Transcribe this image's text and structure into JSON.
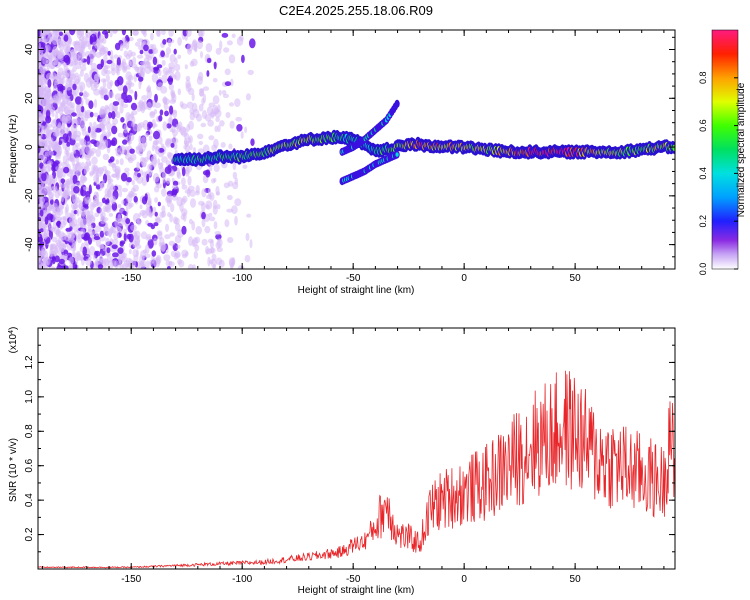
{
  "title": "C2E4.2025.255.18.06.R09",
  "colors": {
    "snr_line": "#e8262a",
    "scatter_light": "#d6b8f5",
    "scatter_dark": "#6a17e8"
  },
  "chart_data": [
    {
      "type": "heatmap",
      "xlabel": "Height of straight line (km)",
      "ylabel": "Frequency (Hz)",
      "xlim": [
        -192,
        95
      ],
      "ylim": [
        -50,
        48
      ],
      "x_ticks": [
        -150,
        -100,
        -50,
        0,
        50
      ],
      "y_ticks": [
        -40,
        -20,
        0,
        20,
        40
      ],
      "colorbar": {
        "label": "Normalized spectral amplitude",
        "range": [
          0,
          1
        ],
        "ticks": [
          "0.0",
          "0.2",
          "0.4",
          "0.6",
          "0.8"
        ]
      },
      "main_trace": {
        "x": [
          -130,
          -120,
          -110,
          -100,
          -90,
          -80,
          -70,
          -60,
          -55,
          -50,
          -45,
          -40,
          -35,
          -30,
          -25,
          -20,
          -10,
          0,
          10,
          20,
          30,
          40,
          50,
          60,
          70,
          80,
          90,
          95
        ],
        "freq": [
          -5,
          -5,
          -4,
          -4,
          -2,
          1,
          3,
          4,
          4,
          3,
          1,
          -2,
          -1,
          0,
          1,
          1,
          0,
          0,
          -1,
          -2,
          -2,
          -2,
          -2,
          -2,
          -2,
          -1,
          0,
          0
        ],
        "amplitude": [
          0.45,
          0.5,
          0.5,
          0.55,
          0.6,
          0.65,
          0.65,
          0.55,
          0.5,
          0.45,
          0.4,
          0.5,
          0.55,
          0.6,
          0.8,
          0.85,
          0.75,
          0.7,
          0.65,
          0.75,
          0.95,
          0.95,
          0.9,
          0.7,
          0.65,
          0.6,
          0.7,
          0.6
        ]
      },
      "upper_branch": {
        "x": [
          -55,
          -50,
          -45,
          -40,
          -35,
          -30
        ],
        "freq": [
          -2,
          0,
          3,
          7,
          11,
          18
        ]
      },
      "lower_branch": {
        "x": [
          -55,
          -50,
          -45,
          -40,
          -35,
          -30
        ],
        "freq": [
          -14,
          -12,
          -10,
          -7,
          -5,
          -3
        ]
      },
      "noise_extent_x": [
        -192,
        -95
      ]
    },
    {
      "type": "line",
      "xlabel": "Height of straight line (km)",
      "ylabel": "SNR (10 * v/v)",
      "multiplier": "(x10",
      "multiplier_exp": "4",
      "xlim": [
        -192,
        95
      ],
      "ylim": [
        0,
        1.4
      ],
      "x_ticks": [
        -150,
        -100,
        -50,
        0,
        50
      ],
      "y_ticks": [
        "0.2",
        "0.4",
        "0.6",
        "0.8",
        "1.0",
        "1.2"
      ],
      "series": [
        {
          "x": [
            -192,
            -150,
            -130,
            -110,
            -90,
            -70,
            -55,
            -50,
            -45,
            -40,
            -35,
            -30,
            -25,
            -20,
            -15,
            -10,
            0,
            10,
            20,
            30,
            40,
            45,
            50,
            55,
            60,
            70,
            80,
            90,
            93,
            95
          ],
          "y": [
            0.01,
            0.01,
            0.02,
            0.03,
            0.04,
            0.07,
            0.1,
            0.14,
            0.16,
            0.25,
            0.38,
            0.2,
            0.18,
            0.15,
            0.35,
            0.4,
            0.45,
            0.5,
            0.6,
            0.72,
            0.78,
            0.82,
            0.8,
            0.72,
            0.65,
            0.6,
            0.55,
            0.5,
            0.9,
            0.4
          ]
        }
      ]
    }
  ]
}
